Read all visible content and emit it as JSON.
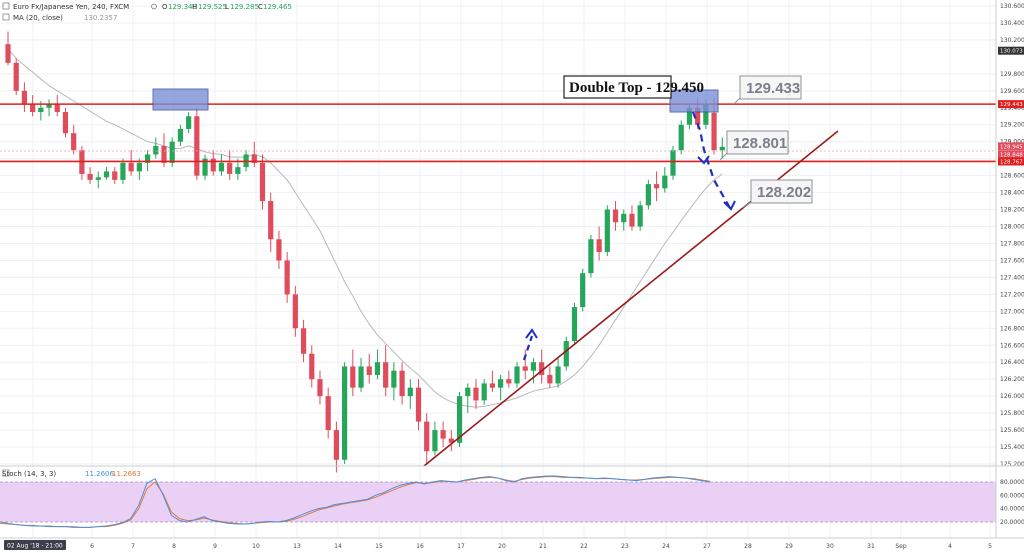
{
  "header": {
    "symbol": "Euro Fx/Japanese Yen, 240, FXCM",
    "ohlc": [
      {
        "k": "O",
        "v": "129.340"
      },
      {
        "k": "H",
        "v": "129.525"
      },
      {
        "k": "L",
        "v": "129.285"
      },
      {
        "k": "C",
        "v": "129.465"
      }
    ],
    "ma_label": "MA (20, close)",
    "ma_value": "130.2357",
    "stoch_label": "Stoch (14, 3, 3)",
    "stoch_k": "11.2606",
    "stoch_d": "11.2663"
  },
  "annotations": {
    "title": "Double Top - 129.450",
    "c1": "129.433",
    "c2": "128.801",
    "c3": "128.202"
  },
  "colors": {
    "up": "#26a65b",
    "down": "#e04c5c",
    "level": "#e01e1e",
    "trend": "#9a1a1a",
    "ma": "#b9b9b9",
    "zone": "#7b8fd6",
    "arrow": "#1f2fbf",
    "stoch_k": "#4a90d9",
    "stoch_d": "#e07b39",
    "stoch_bg": "#e8c8f4"
  },
  "chart_data": {
    "type": "candlestick",
    "x_labels": [
      "02 Aug '18 - 21:00",
      "6",
      "7",
      "8",
      "9",
      "10",
      "13",
      "14",
      "15",
      "16",
      "17",
      "20",
      "21",
      "22",
      "23",
      "24",
      "27",
      "28",
      "29",
      "30",
      "31",
      "Sep",
      "4",
      "5"
    ],
    "y_ticks": [
      "130.600",
      "130.400",
      "130.200",
      "129.800",
      "129.600",
      "129.400",
      "129.200",
      "129.000",
      "128.800",
      "128.600",
      "128.400",
      "128.200",
      "128.000",
      "127.800",
      "127.600",
      "127.400",
      "127.200",
      "127.000",
      "126.800",
      "126.600",
      "126.400",
      "126.200",
      "126.000",
      "125.800",
      "125.600",
      "125.400",
      "125.200"
    ],
    "price_tags": [
      {
        "text": "130.073",
        "value": 130.073,
        "color": "#333333"
      },
      {
        "text": "129.443",
        "value": 129.443,
        "color": "#e01e1e"
      },
      {
        "text": "128.945",
        "value": 128.945,
        "color": "#e04c5c"
      },
      {
        "text": "128.848",
        "value": 128.848,
        "color": "#e04c5c"
      },
      {
        "text": "128.767",
        "value": 128.767,
        "color": "#e01e1e"
      }
    ],
    "levels": [
      129.443,
      128.767
    ],
    "candles": [
      [
        130.15,
        130.3,
        129.9,
        129.93
      ],
      [
        129.93,
        129.98,
        129.55,
        129.6
      ],
      [
        129.6,
        129.7,
        129.35,
        129.45
      ],
      [
        129.45,
        129.55,
        129.3,
        129.35
      ],
      [
        129.35,
        129.48,
        129.25,
        129.4
      ],
      [
        129.4,
        129.5,
        129.3,
        129.45
      ],
      [
        129.45,
        129.55,
        129.3,
        129.35
      ],
      [
        129.35,
        129.4,
        129.05,
        129.1
      ],
      [
        129.1,
        129.2,
        128.85,
        128.9
      ],
      [
        128.9,
        128.95,
        128.55,
        128.62
      ],
      [
        128.62,
        128.7,
        128.5,
        128.55
      ],
      [
        128.55,
        128.65,
        128.45,
        128.58
      ],
      [
        128.58,
        128.7,
        128.55,
        128.65
      ],
      [
        128.65,
        128.7,
        128.5,
        128.55
      ],
      [
        128.55,
        128.8,
        128.5,
        128.75
      ],
      [
        128.75,
        128.9,
        128.6,
        128.65
      ],
      [
        128.65,
        128.8,
        128.55,
        128.75
      ],
      [
        128.75,
        128.9,
        128.65,
        128.85
      ],
      [
        128.85,
        129.05,
        128.8,
        128.95
      ],
      [
        128.95,
        129.1,
        128.7,
        128.75
      ],
      [
        128.75,
        129.05,
        128.7,
        129.0
      ],
      [
        129.0,
        129.2,
        128.95,
        129.15
      ],
      [
        129.15,
        129.35,
        129.1,
        129.3
      ],
      [
        129.3,
        129.4,
        128.55,
        128.6
      ],
      [
        128.6,
        128.85,
        128.55,
        128.8
      ],
      [
        128.8,
        128.9,
        128.6,
        128.65
      ],
      [
        128.65,
        128.85,
        128.6,
        128.75
      ],
      [
        128.75,
        128.9,
        128.55,
        128.62
      ],
      [
        128.62,
        128.8,
        128.55,
        128.7
      ],
      [
        128.7,
        128.9,
        128.65,
        128.85
      ],
      [
        128.85,
        129.0,
        128.7,
        128.75
      ],
      [
        128.75,
        128.85,
        128.2,
        128.3
      ],
      [
        128.3,
        128.4,
        127.7,
        127.85
      ],
      [
        127.85,
        127.95,
        127.5,
        127.6
      ],
      [
        127.6,
        127.7,
        127.1,
        127.2
      ],
      [
        127.2,
        127.3,
        126.7,
        126.8
      ],
      [
        126.8,
        126.9,
        126.4,
        126.5
      ],
      [
        126.5,
        126.6,
        126.1,
        126.2
      ],
      [
        126.2,
        126.3,
        125.9,
        126.0
      ],
      [
        126.0,
        126.1,
        125.5,
        125.6
      ],
      [
        125.6,
        125.7,
        125.1,
        125.25
      ],
      [
        125.25,
        126.4,
        125.2,
        126.35
      ],
      [
        126.35,
        126.55,
        126.0,
        126.1
      ],
      [
        126.1,
        126.45,
        126.05,
        126.35
      ],
      [
        126.35,
        126.5,
        126.15,
        126.25
      ],
      [
        126.25,
        126.55,
        126.2,
        126.4
      ],
      [
        126.4,
        126.6,
        126.0,
        126.1
      ],
      [
        126.1,
        126.4,
        125.95,
        126.3
      ],
      [
        126.3,
        126.4,
        125.9,
        126.0
      ],
      [
        126.0,
        126.2,
        125.85,
        126.1
      ],
      [
        126.1,
        126.2,
        125.6,
        125.7
      ],
      [
        125.7,
        125.8,
        125.2,
        125.35
      ],
      [
        125.35,
        125.7,
        125.3,
        125.6
      ],
      [
        125.6,
        125.7,
        125.4,
        125.5
      ],
      [
        125.5,
        125.6,
        125.35,
        125.45
      ],
      [
        125.45,
        126.05,
        125.4,
        126.0
      ],
      [
        126.0,
        126.15,
        125.8,
        126.1
      ],
      [
        126.1,
        126.2,
        125.85,
        125.95
      ],
      [
        125.95,
        126.2,
        125.9,
        126.15
      ],
      [
        126.15,
        126.3,
        126.05,
        126.1
      ],
      [
        126.1,
        126.25,
        125.95,
        126.2
      ],
      [
        126.2,
        126.3,
        126.1,
        126.15
      ],
      [
        126.15,
        126.4,
        126.1,
        126.35
      ],
      [
        126.35,
        126.55,
        126.2,
        126.3
      ],
      [
        126.3,
        126.45,
        126.15,
        126.4
      ],
      [
        126.4,
        126.55,
        126.15,
        126.25
      ],
      [
        126.25,
        126.35,
        126.1,
        126.15
      ],
      [
        126.15,
        126.45,
        126.1,
        126.35
      ],
      [
        126.35,
        126.7,
        126.3,
        126.65
      ],
      [
        126.65,
        127.1,
        126.6,
        127.05
      ],
      [
        127.05,
        127.5,
        127.0,
        127.45
      ],
      [
        127.45,
        127.9,
        127.4,
        127.85
      ],
      [
        127.85,
        128.0,
        127.6,
        127.7
      ],
      [
        127.7,
        128.25,
        127.65,
        128.2
      ],
      [
        128.2,
        128.3,
        127.95,
        128.05
      ],
      [
        128.05,
        128.2,
        127.95,
        128.15
      ],
      [
        128.15,
        128.25,
        127.95,
        128.0
      ],
      [
        128.0,
        128.3,
        127.95,
        128.25
      ],
      [
        128.25,
        128.55,
        128.2,
        128.5
      ],
      [
        128.5,
        128.65,
        128.3,
        128.45
      ],
      [
        128.45,
        128.7,
        128.4,
        128.6
      ],
      [
        128.6,
        128.95,
        128.55,
        128.9
      ],
      [
        128.9,
        129.25,
        128.85,
        129.2
      ],
      [
        129.2,
        129.45,
        129.15,
        129.4
      ],
      [
        129.4,
        129.52,
        129.15,
        129.2
      ],
      [
        129.2,
        129.5,
        129.15,
        129.45
      ],
      [
        129.34,
        129.52,
        128.85,
        128.9
      ],
      [
        128.9,
        129.05,
        128.8,
        128.94
      ]
    ],
    "stoch_y_ticks": [
      "80.0000",
      "60.0000",
      "40.0000",
      "20.0000"
    ],
    "stoch_k": [
      20,
      18,
      16,
      15,
      14,
      14,
      13,
      13,
      13,
      12,
      12,
      12,
      13,
      14,
      16,
      19,
      25,
      45,
      78,
      85,
      60,
      30,
      22,
      20,
      24,
      28,
      22,
      20,
      18,
      17,
      17,
      18,
      20,
      21,
      20,
      22,
      26,
      31,
      36,
      40,
      42,
      46,
      48,
      50,
      52,
      54,
      60,
      64,
      70,
      75,
      78,
      80,
      77,
      80,
      82,
      81,
      80,
      83,
      85,
      87,
      88,
      86,
      82,
      80,
      85,
      87,
      88,
      89,
      89,
      88,
      87,
      87,
      86,
      85,
      86,
      85,
      84,
      83,
      82,
      84,
      86,
      87,
      88,
      87,
      86,
      84,
      82,
      80
    ],
    "stoch_d": [
      18,
      17,
      16,
      15,
      15,
      14,
      14,
      13,
      13,
      13,
      12,
      12,
      13,
      13,
      15,
      18,
      23,
      40,
      70,
      80,
      62,
      35,
      25,
      22,
      23,
      26,
      23,
      21,
      19,
      18,
      17,
      18,
      19,
      20,
      20,
      21,
      24,
      28,
      33,
      38,
      41,
      44,
      47,
      49,
      51,
      53,
      57,
      62,
      67,
      72,
      76,
      79,
      78,
      79,
      81,
      81,
      80,
      82,
      84,
      86,
      87,
      86,
      83,
      81,
      84,
      86,
      87,
      88,
      88,
      87,
      87,
      86,
      86,
      85,
      85,
      85,
      84,
      83,
      83,
      84,
      85,
      86,
      87,
      87,
      86,
      85,
      83,
      81
    ],
    "ma_values": [
      130.1,
      129.98,
      129.9,
      129.82,
      129.74,
      129.66,
      129.6,
      129.54,
      129.48,
      129.42,
      129.36,
      129.3,
      129.24,
      129.2,
      129.15,
      129.1,
      129.05,
      129.0,
      128.98,
      128.95,
      128.92,
      128.92,
      128.95,
      128.92,
      128.88,
      128.86,
      128.85,
      128.82,
      128.82,
      128.82,
      128.85,
      128.82,
      128.75,
      128.65,
      128.55,
      128.4,
      128.25,
      128.1,
      127.95,
      127.75,
      127.55,
      127.35,
      127.18,
      127.0,
      126.85,
      126.72,
      126.62,
      126.52,
      126.42,
      126.33,
      126.25,
      126.15,
      126.05,
      125.98,
      125.93,
      125.9,
      125.88,
      125.87,
      125.88,
      125.9,
      125.92,
      125.95,
      125.98,
      126.02,
      126.06,
      126.08,
      126.1,
      126.12,
      126.18,
      126.25,
      126.35,
      126.47,
      126.6,
      126.75,
      126.9,
      127.05,
      127.2,
      127.35,
      127.5,
      127.65,
      127.8,
      127.93,
      128.07,
      128.2,
      128.33,
      128.45,
      128.55,
      128.62
    ]
  }
}
